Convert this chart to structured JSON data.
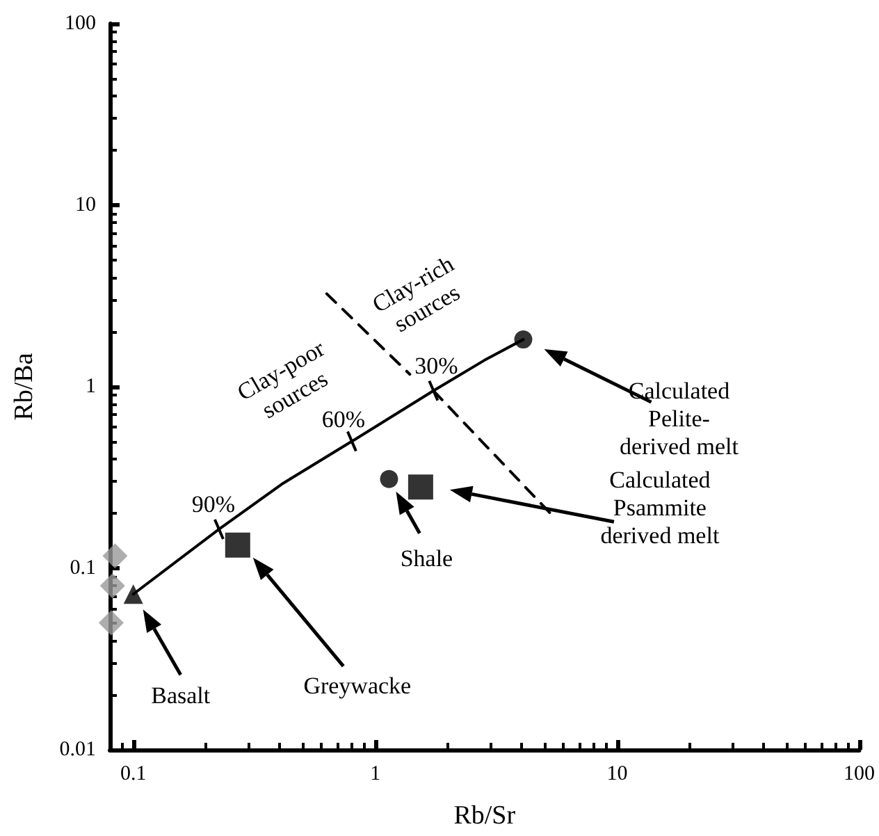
{
  "chart_data": {
    "type": "scatter",
    "xlabel": "Rb/Sr",
    "ylabel": "Rb/Ba",
    "log": "xy",
    "grid": false,
    "xlim": [
      0.08,
      100
    ],
    "xticks": [
      0.1,
      1,
      10,
      100
    ],
    "ylim": [
      0.01,
      100
    ],
    "yticks": [
      0.01,
      0.1,
      1,
      10,
      100
    ],
    "series": [
      {
        "type": "line",
        "color": "#000000",
        "marker": "none",
        "line_style": "solid",
        "x": [
          0.1,
          0.226,
          0.41,
          0.8,
          1.74,
          2.83,
          4.09
        ],
        "values": [
          0.072,
          0.164,
          0.29,
          0.5,
          0.95,
          1.4,
          1.82
        ]
      },
      {
        "type": "line",
        "color": "#000000",
        "marker": "none",
        "line_style": "dashed",
        "x": [
          1.74,
          5.5
        ],
        "values": [
          0.95,
          0.19
        ]
      },
      {
        "type": "line",
        "color": "#000000",
        "marker": "none",
        "line_style": "dashed",
        "x": [
          0.63,
          1.39
        ],
        "values": [
          3.25,
          1.17
        ]
      },
      {
        "color": "#999999",
        "marker": "diamond",
        "x": [
          0.084,
          0.082,
          0.081
        ],
        "values": [
          0.117,
          0.08,
          0.05
        ]
      },
      {
        "color": "#000000",
        "marker": "triangle",
        "x": [
          0.1
        ],
        "values": [
          0.072
        ]
      },
      {
        "color": "#000000",
        "marker": "circle",
        "x": [
          4.09,
          1.14
        ],
        "values": [
          1.82,
          0.31
        ]
      },
      {
        "color": "#000000",
        "marker": "square",
        "x": [
          1.54,
          0.27
        ],
        "values": [
          0.28,
          0.134
        ]
      }
    ],
    "annotations": [
      {
        "text": "90%",
        "x": 0.226,
        "y": 0.164
      },
      {
        "text": "60%",
        "x": 0.8,
        "y": 0.5
      },
      {
        "text": "30%",
        "x": 1.74,
        "y": 0.95
      },
      "Clay-poor\nsources",
      "Clay-rich\nsources",
      "Calculated\nPelite-\nderived melt",
      "Calculated\nPsammite\nderived melt",
      {
        "text": "Shale",
        "x": 1.14,
        "y": 0.31
      },
      "Greywacke",
      "Basalt"
    ]
  }
}
